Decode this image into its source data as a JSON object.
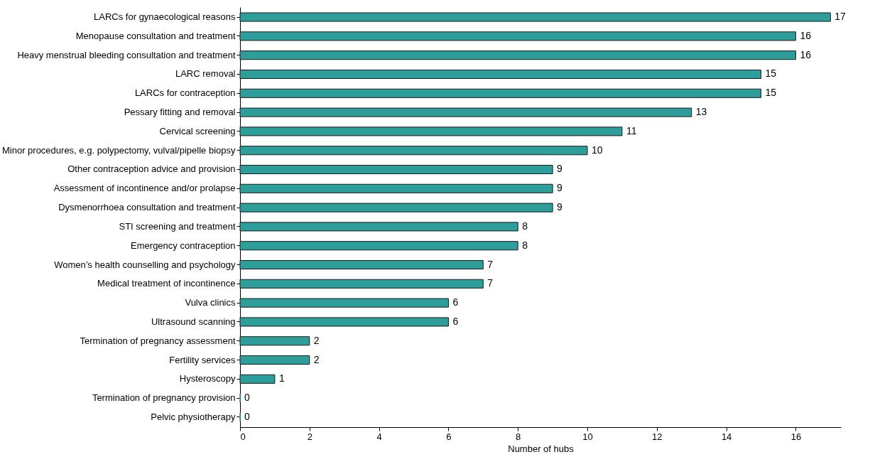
{
  "chart_data": {
    "type": "bar",
    "orientation": "horizontal",
    "xlabel": "Number of hubs",
    "categories": [
      "LARCs for gynaecological reasons",
      "Menopause consultation and treatment",
      "Heavy menstrual bleeding consultation and treatment",
      "LARC removal",
      "LARCs for contraception",
      "Pessary fitting and removal",
      "Cervical screening",
      "Minor procedures, e.g. polypectomy, vulval/pipelle biopsy",
      "Other contraception advice and provision",
      "Assessment of incontinence and/or prolapse",
      "Dysmenorrhoea consultation and treatment",
      "STI screening and treatment",
      "Emergency contraception",
      "Women’s health counselling and psychology",
      "Medical treatment of incontinence",
      "Vulva clinics",
      "Ultrasound scanning",
      "Termination of pregnancy assessment",
      "Fertility services",
      "Hysteroscopy",
      "Termination of pregnancy  provision",
      "Pelvic physiotherapy"
    ],
    "values": [
      17,
      16,
      16,
      15,
      15,
      13,
      11,
      10,
      9,
      9,
      9,
      8,
      8,
      7,
      7,
      6,
      6,
      2,
      2,
      1,
      0,
      0
    ],
    "color": "#2e9e9a",
    "xlim": [
      0,
      17.3
    ],
    "xticks": [
      0,
      2,
      4,
      6,
      8,
      10,
      12,
      14,
      16
    ],
    "grid": false,
    "data_labels": true
  }
}
